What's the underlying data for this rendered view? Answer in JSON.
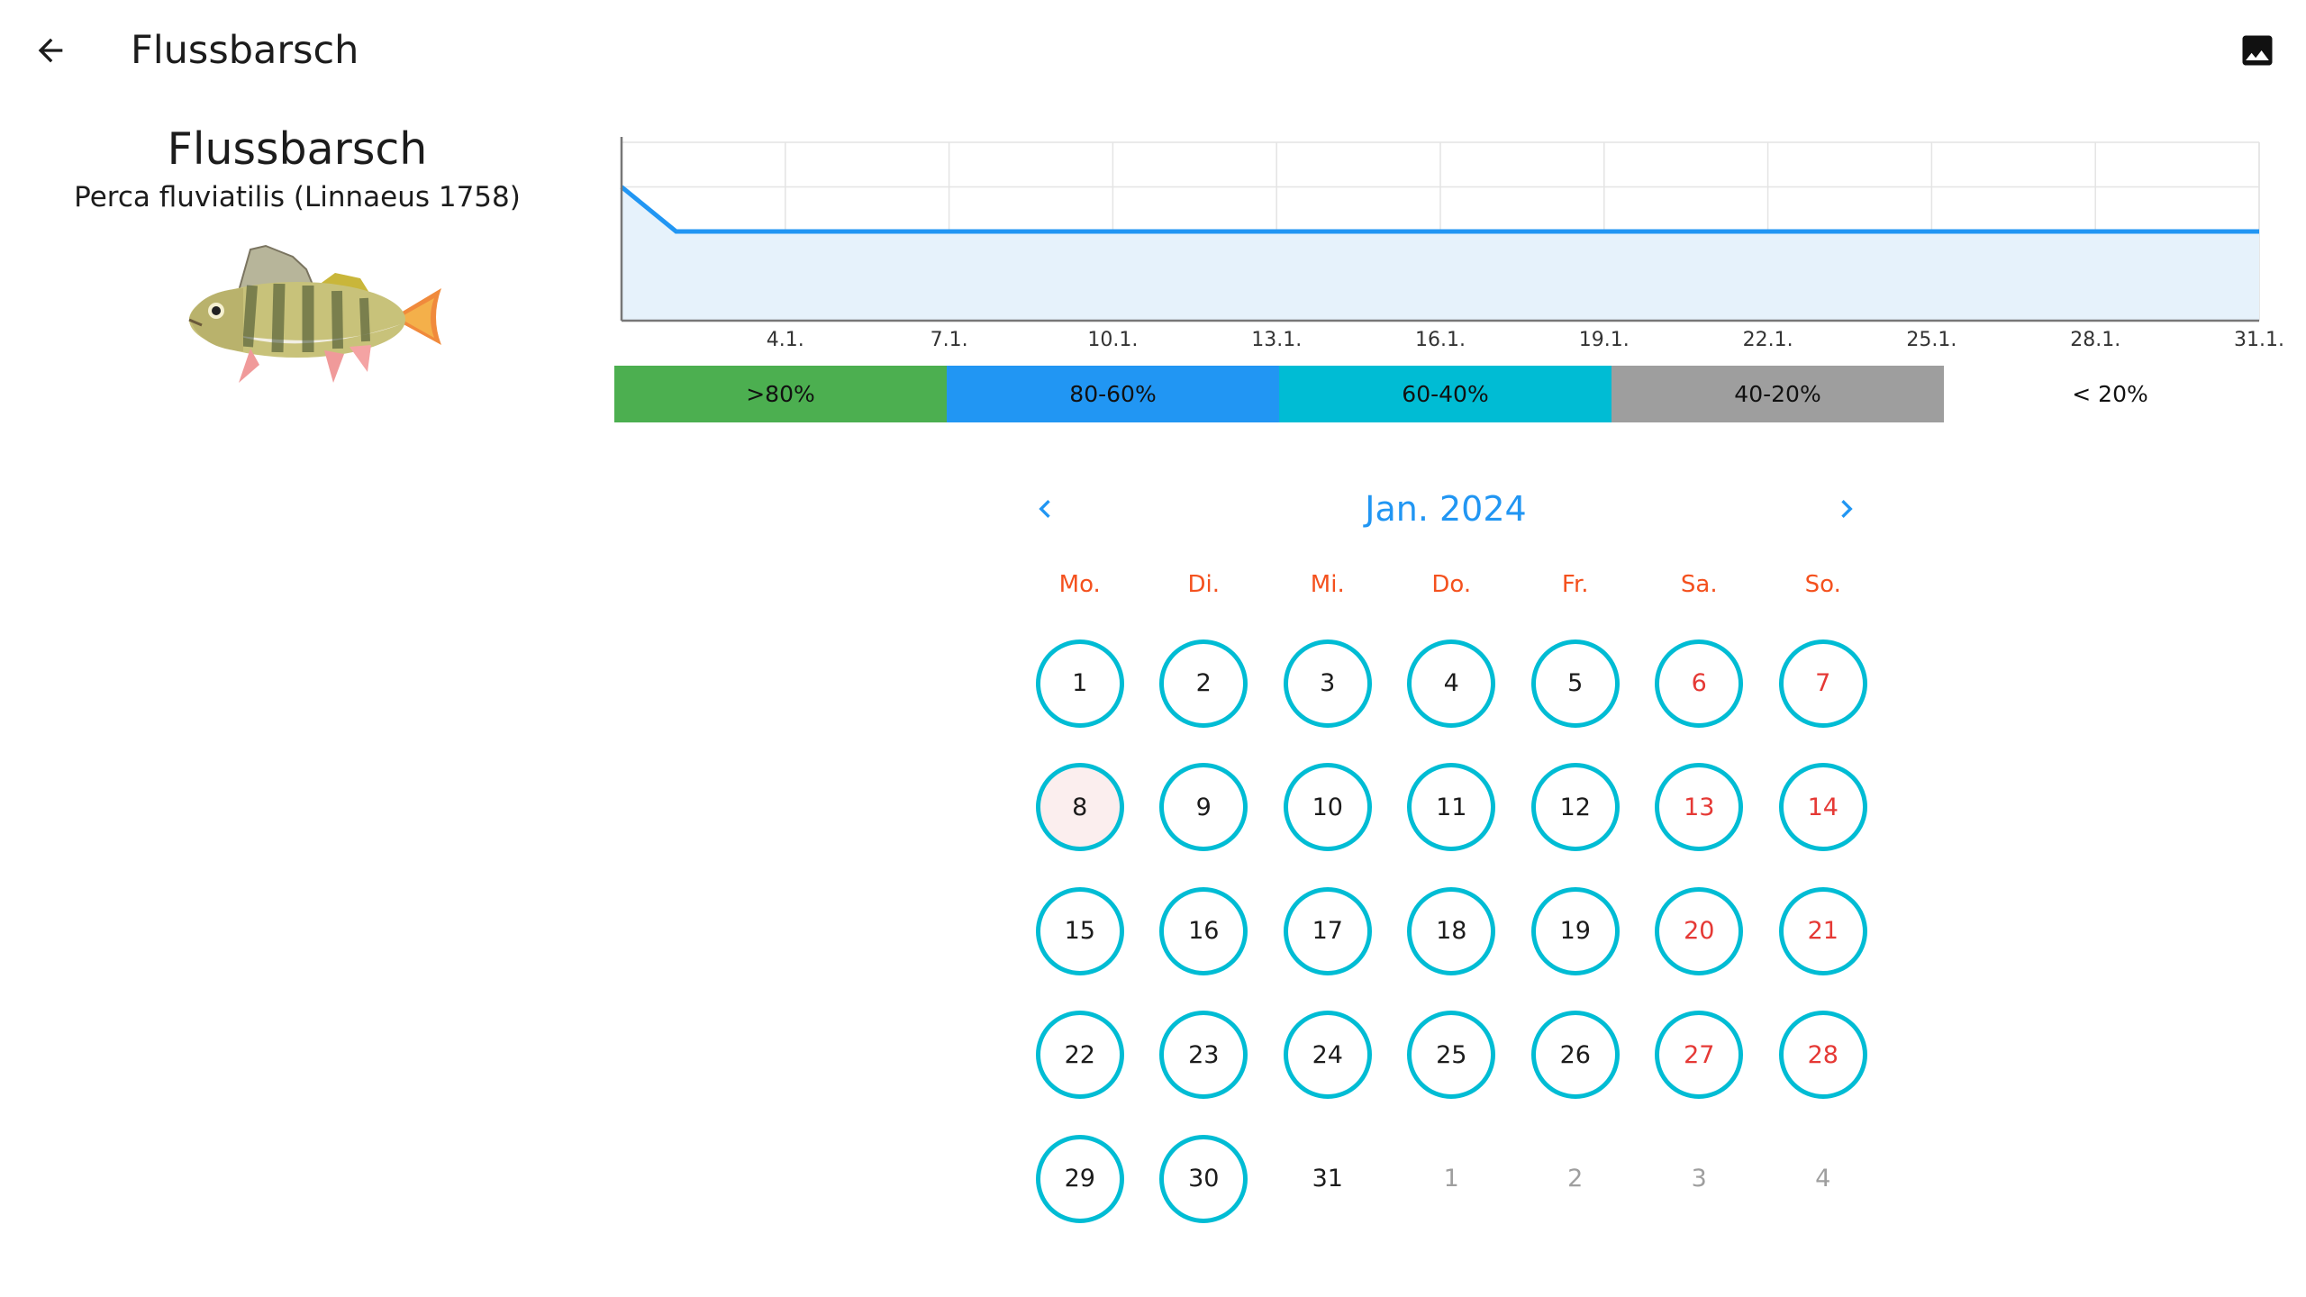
{
  "topbar": {
    "title": "Flussbarsch",
    "back_icon": "arrow-left-icon",
    "image_icon": "image-icon"
  },
  "fish": {
    "name": "Flussbarsch",
    "scientific_name": "Perca fluviatilis (Linnaeus 1758)",
    "image_icon": "perch-fish-illustration"
  },
  "chart_data": {
    "type": "area",
    "x_tick_labels": [
      "4.1.",
      "7.1.",
      "10.1.",
      "13.1.",
      "16.1.",
      "19.1.",
      "22.1.",
      "25.1.",
      "31.1."
    ],
    "x": [
      1,
      2,
      31
    ],
    "y": [
      75,
      50,
      50
    ],
    "ylim": [
      0,
      100
    ],
    "grid": true,
    "line_color": "#2196f3",
    "fill_color": "#e6f2fb"
  },
  "chart_ticks_extra": [
    "28.1."
  ],
  "legend": [
    {
      "label": ">80%",
      "color": "#4caf50"
    },
    {
      "label": "80-60%",
      "color": "#2196f3"
    },
    {
      "label": "60-40%",
      "color": "#00bcd4"
    },
    {
      "label": "40-20%",
      "color": "#9e9e9e"
    },
    {
      "label": "< 20%",
      "color": "#ffffff"
    }
  ],
  "calendar": {
    "month_label": "Jan. 2024",
    "prev_icon": "chevron-left-icon",
    "next_icon": "chevron-right-icon",
    "accent_color": "#2196f3",
    "ring_color": "#00bcd4",
    "weekend_color": "#e53935",
    "weekdays": [
      "Mo.",
      "Di.",
      "Mi.",
      "Do.",
      "Fr.",
      "Sa.",
      "So."
    ],
    "days": [
      {
        "label": "1",
        "ring": true,
        "weekend": false
      },
      {
        "label": "2",
        "ring": true,
        "weekend": false
      },
      {
        "label": "3",
        "ring": true,
        "weekend": false
      },
      {
        "label": "4",
        "ring": true,
        "weekend": false
      },
      {
        "label": "5",
        "ring": true,
        "weekend": false
      },
      {
        "label": "6",
        "ring": true,
        "weekend": true
      },
      {
        "label": "7",
        "ring": true,
        "weekend": true
      },
      {
        "label": "8",
        "ring": true,
        "weekend": false,
        "today": true
      },
      {
        "label": "9",
        "ring": true,
        "weekend": false
      },
      {
        "label": "10",
        "ring": true,
        "weekend": false
      },
      {
        "label": "11",
        "ring": true,
        "weekend": false
      },
      {
        "label": "12",
        "ring": true,
        "weekend": false
      },
      {
        "label": "13",
        "ring": true,
        "weekend": true
      },
      {
        "label": "14",
        "ring": true,
        "weekend": true
      },
      {
        "label": "15",
        "ring": true,
        "weekend": false
      },
      {
        "label": "16",
        "ring": true,
        "weekend": false
      },
      {
        "label": "17",
        "ring": true,
        "weekend": false
      },
      {
        "label": "18",
        "ring": true,
        "weekend": false
      },
      {
        "label": "19",
        "ring": true,
        "weekend": false
      },
      {
        "label": "20",
        "ring": true,
        "weekend": true
      },
      {
        "label": "21",
        "ring": true,
        "weekend": true
      },
      {
        "label": "22",
        "ring": true,
        "weekend": false
      },
      {
        "label": "23",
        "ring": true,
        "weekend": false
      },
      {
        "label": "24",
        "ring": true,
        "weekend": false
      },
      {
        "label": "25",
        "ring": true,
        "weekend": false
      },
      {
        "label": "26",
        "ring": true,
        "weekend": false
      },
      {
        "label": "27",
        "ring": true,
        "weekend": true
      },
      {
        "label": "28",
        "ring": true,
        "weekend": true
      },
      {
        "label": "29",
        "ring": true,
        "weekend": false
      },
      {
        "label": "30",
        "ring": true,
        "weekend": false
      },
      {
        "label": "31",
        "ring": false,
        "weekend": false
      },
      {
        "label": "1",
        "ring": false,
        "muted": true
      },
      {
        "label": "2",
        "ring": false,
        "muted": true
      },
      {
        "label": "3",
        "ring": false,
        "muted": true
      },
      {
        "label": "4",
        "ring": false,
        "muted": true
      }
    ]
  }
}
